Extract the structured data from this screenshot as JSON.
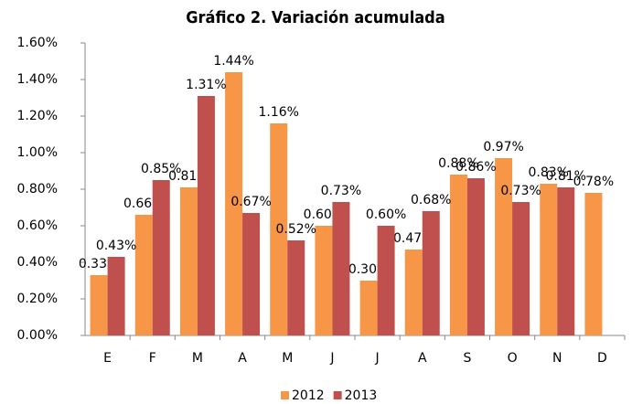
{
  "chart_data": {
    "type": "bar",
    "title": "Gráfico 2. Variación acumulada",
    "categories": [
      "E",
      "F",
      "M",
      "A",
      "M",
      "J",
      "J",
      "A",
      "S",
      "O",
      "N",
      "D"
    ],
    "series": [
      {
        "name": "2012",
        "color": "#f79646",
        "values": [
          0.33,
          0.66,
          0.81,
          1.44,
          1.16,
          0.6,
          0.3,
          0.47,
          0.88,
          0.97,
          0.83,
          0.78
        ],
        "value_labels": [
          "0.33%",
          "0.66%",
          "0.81%",
          "1.44%",
          "1.16%",
          "0.60%",
          "0.30%",
          "0.47%",
          "0.88%",
          "0.97%",
          "0.83%",
          "0.78%"
        ]
      },
      {
        "name": "2013",
        "color": "#c0504d",
        "values": [
          0.43,
          0.85,
          1.31,
          0.67,
          0.52,
          0.73,
          0.6,
          0.68,
          0.86,
          0.73,
          0.81,
          null
        ],
        "value_labels": [
          "0.43%",
          "0.85%",
          "1.31%",
          "0.67%",
          "0.52%",
          "0.73%",
          "0.60%",
          "0.68%",
          "0.86%",
          "0.73%",
          "0.81%",
          null
        ]
      }
    ],
    "ylim": [
      0,
      1.6
    ],
    "yticks": [
      {
        "value": 0,
        "label": "0.00%"
      },
      {
        "value": 0.2,
        "label": "0.20%"
      },
      {
        "value": 0.4,
        "label": "0.40%"
      },
      {
        "value": 0.6,
        "label": "0.60%"
      },
      {
        "value": 0.8,
        "label": "0.80%"
      },
      {
        "value": 1.0,
        "label": "1.00%"
      },
      {
        "value": 1.2,
        "label": "1.20%"
      },
      {
        "value": 1.4,
        "label": "1.40%"
      },
      {
        "value": 1.6,
        "label": "1.60%"
      }
    ],
    "grid": false,
    "legend": "bottom"
  }
}
